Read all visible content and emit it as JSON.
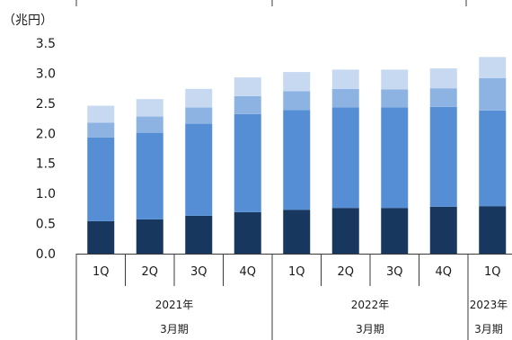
{
  "chart_data": {
    "type": "bar",
    "stacked": true,
    "unit_label": "（兆円）",
    "ylim": [
      0,
      3.5
    ],
    "y_ticks": [
      "0.0",
      "0.5",
      "1.0",
      "1.5",
      "2.0",
      "2.5",
      "3.0",
      "3.5"
    ],
    "categories": [
      "1Q",
      "2Q",
      "3Q",
      "4Q",
      "1Q",
      "2Q",
      "3Q",
      "4Q",
      "1Q"
    ],
    "groups": [
      {
        "line1": "2021年",
        "line2": "3月期",
        "start": 0,
        "end": 4
      },
      {
        "line1": "2022年",
        "line2": "3月期",
        "start": 4,
        "end": 8
      },
      {
        "line1": "2023年",
        "line2": "3月期",
        "start": 8,
        "end": 9
      }
    ],
    "series": [
      {
        "color": "#17375e",
        "values": [
          0.54,
          0.57,
          0.63,
          0.69,
          0.73,
          0.76,
          0.76,
          0.78,
          0.79
        ]
      },
      {
        "color": "#558ed5",
        "values": [
          1.39,
          1.44,
          1.53,
          1.63,
          1.66,
          1.67,
          1.67,
          1.66,
          1.59
        ]
      },
      {
        "color": "#8db3e2",
        "values": [
          0.25,
          0.27,
          0.27,
          0.3,
          0.31,
          0.31,
          0.3,
          0.31,
          0.54
        ]
      },
      {
        "color": "#c6d9f1",
        "values": [
          0.28,
          0.29,
          0.31,
          0.31,
          0.32,
          0.32,
          0.33,
          0.33,
          0.35
        ]
      }
    ],
    "grid": false,
    "legend": "none"
  }
}
